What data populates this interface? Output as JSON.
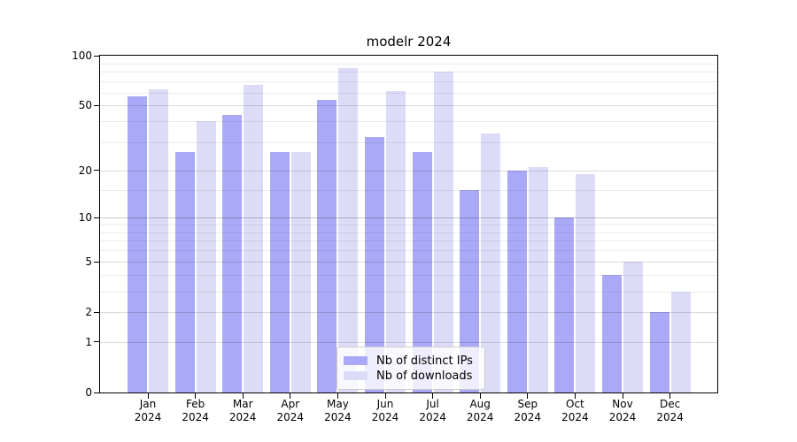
{
  "chart_data": {
    "type": "bar",
    "title": "modelr 2024",
    "categories": [
      "Jan 2024",
      "Feb 2024",
      "Mar 2024",
      "Apr 2024",
      "May 2024",
      "Jun 2024",
      "Jul 2024",
      "Aug 2024",
      "Sep 2024",
      "Oct 2024",
      "Nov 2024",
      "Dec 2024"
    ],
    "series": [
      {
        "name": "Nb of distinct IPs",
        "color": "#a9a9f7",
        "values": [
          57,
          26,
          44,
          26,
          54,
          32,
          26,
          15,
          20,
          10,
          4,
          2
        ]
      },
      {
        "name": "Nb of downloads",
        "color": "#dcdcf8",
        "values": [
          63,
          40,
          67,
          26,
          84,
          61,
          80,
          34,
          21,
          19,
          5,
          3
        ]
      }
    ],
    "xlabel": "",
    "ylabel": "",
    "y_scale": "log1p",
    "ylim": [
      0,
      100
    ],
    "y_ticks": [
      100,
      50,
      20,
      10,
      5,
      2,
      1,
      0
    ],
    "y_minor_gridlines": [
      3,
      4,
      6,
      7,
      8,
      9,
      15,
      30,
      40,
      60,
      70,
      80,
      90
    ],
    "grid": "horizontal",
    "legend_position": "lower center"
  },
  "colors": {
    "bar_distinct_ips": "#a9a9f7",
    "bar_downloads": "#dcdcf8",
    "grid_minor": "rgba(0,0,0,0.07)",
    "grid_major": "rgba(0,0,0,0.14)",
    "grid_emphasis": "rgba(0,0,0,0.22)",
    "axis": "#000000",
    "legend_border": "#cccccc"
  }
}
